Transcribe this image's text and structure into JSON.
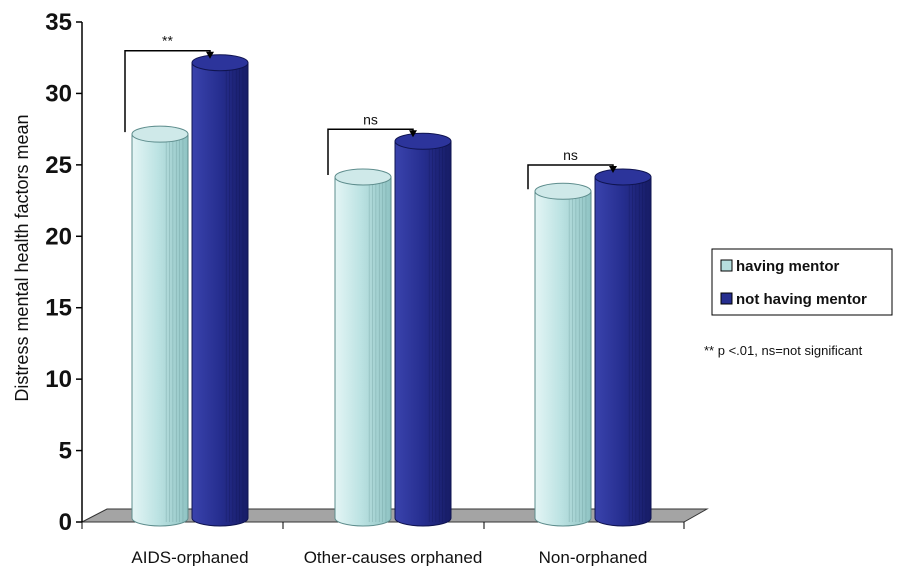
{
  "chart_data": {
    "type": "bar",
    "categories": [
      "AIDS-orphaned",
      "Other-causes orphaned",
      "Non-orphaned"
    ],
    "series": [
      {
        "name": "having mentor",
        "values": [
          27.5,
          24.5,
          23.5
        ],
        "color": "#b6dfdf"
      },
      {
        "name": "not having mentor",
        "values": [
          32.5,
          27,
          24.5
        ],
        "color": "#262e8f"
      }
    ],
    "ylabel": "Distress mental health factors mean",
    "ylim": [
      0,
      35
    ],
    "yticks": [
      "0",
      "5",
      "10",
      "15",
      "20",
      "25",
      "30",
      "35"
    ],
    "significance": [
      "**",
      "ns",
      "ns"
    ],
    "note": "** p <.01,  ns=not significant",
    "legend_position": "right"
  }
}
